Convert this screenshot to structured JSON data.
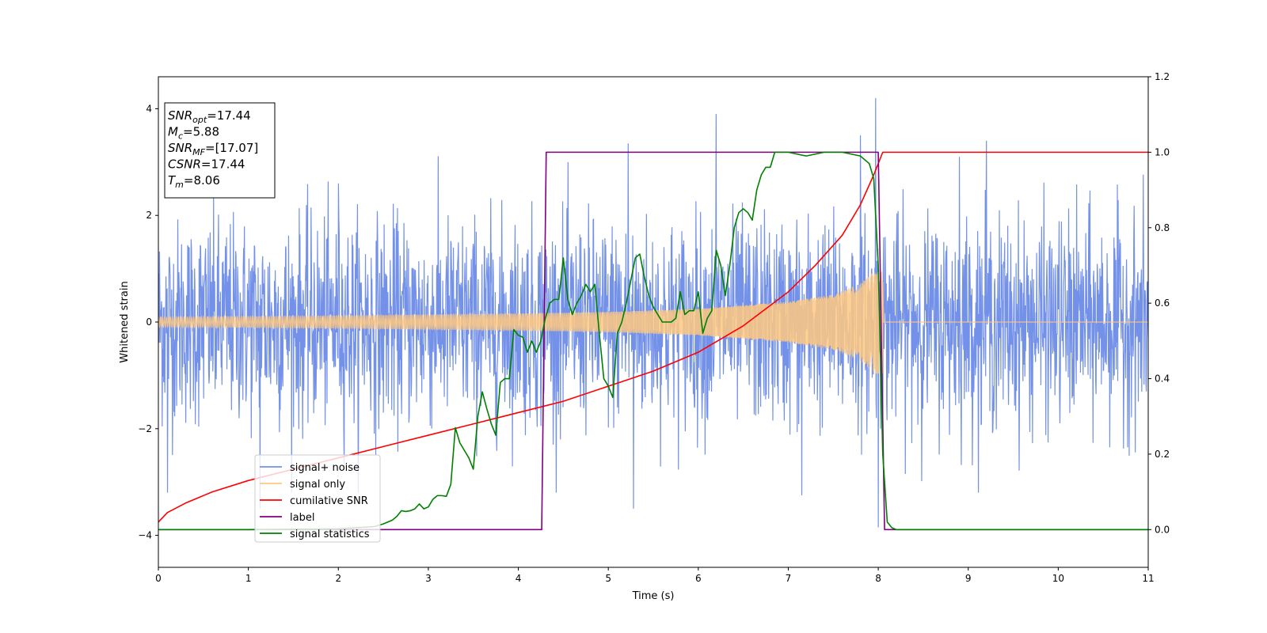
{
  "chart_data": {
    "type": "line",
    "xlabel": "Time (s)",
    "ylabel": "Whitened strain",
    "xlim": [
      0,
      11
    ],
    "ylim_left": [
      -4.6,
      4.6
    ],
    "ylim_right": [
      -0.1,
      1.2
    ],
    "x_ticks": [
      0,
      1,
      2,
      3,
      4,
      5,
      6,
      7,
      8,
      9,
      10,
      11
    ],
    "y_ticks_left": [
      -4,
      -2,
      0,
      2,
      4
    ],
    "y_ticks_right": [
      0.0,
      0.2,
      0.4,
      0.6,
      0.8,
      1.0,
      1.2
    ],
    "grid": false,
    "legend_position": "lower-left",
    "info_box": [
      {
        "sym": "SNR",
        "sub": "opt",
        "value": "=17.44"
      },
      {
        "sym": "M",
        "sub": "c",
        "value": "=5.88"
      },
      {
        "sym": "SNR",
        "sub": "MF",
        "value": "=[17.07]"
      },
      {
        "sym": "CSNR",
        "sub": "",
        "value": "=17.44"
      },
      {
        "sym": "T",
        "sub": "m",
        "value": "=8.06"
      }
    ],
    "series": [
      {
        "name": "signal+ noise",
        "color": "#7391e8",
        "axis": "left",
        "kind": "noise",
        "description_levels": {
          "typical_amplitude": 1.0,
          "max_peak": 4.2,
          "min_peak": -3.9
        },
        "peaks": [
          [
            1.13,
            -3.5
          ],
          [
            5.22,
            3.35
          ],
          [
            5.28,
            -3.5
          ],
          [
            6.2,
            3.9
          ],
          [
            7.15,
            -3.25
          ],
          [
            7.8,
            3.5
          ],
          [
            7.97,
            4.2
          ],
          [
            8.0,
            -3.85
          ],
          [
            9.2,
            3.4
          ],
          [
            0.1,
            -3.2
          ],
          [
            2.0,
            2.6
          ],
          [
            8.9,
            3.1
          ]
        ]
      },
      {
        "name": "signal only",
        "color": "#ffc880",
        "axis": "left",
        "kind": "chirp",
        "envelope": [
          [
            0,
            0.09
          ],
          [
            2,
            0.12
          ],
          [
            4,
            0.16
          ],
          [
            5,
            0.19
          ],
          [
            6,
            0.25
          ],
          [
            7,
            0.38
          ],
          [
            7.5,
            0.52
          ],
          [
            7.8,
            0.72
          ],
          [
            7.95,
            0.95
          ],
          [
            8.05,
            1.05
          ]
        ],
        "tail_after_merger": 0.0
      },
      {
        "name": "cumilative SNR",
        "color": "#ff0000",
        "axis": "right",
        "x": [
          0,
          0.1,
          0.3,
          0.6,
          1,
          1.5,
          2,
          2.5,
          3,
          3.5,
          4,
          4.5,
          5,
          5.5,
          6,
          6.5,
          7,
          7.3,
          7.6,
          7.8,
          7.95,
          8.05,
          8.1,
          11
        ],
        "y": [
          0.02,
          0.045,
          0.07,
          0.1,
          0.13,
          0.16,
          0.19,
          0.22,
          0.25,
          0.28,
          0.31,
          0.34,
          0.38,
          0.42,
          0.47,
          0.54,
          0.63,
          0.7,
          0.78,
          0.86,
          0.94,
          1.0,
          1.0,
          1.0
        ]
      },
      {
        "name": "label",
        "color": "#800080",
        "axis": "right",
        "x": [
          0,
          4.26,
          4.31,
          8.0,
          8.07,
          11
        ],
        "y": [
          0,
          0,
          1,
          1,
          0,
          0
        ]
      },
      {
        "name": "signal statistics",
        "color": "#008000",
        "axis": "right",
        "x": [
          0,
          1,
          2,
          2.4,
          2.5,
          2.6,
          2.65,
          2.7,
          2.75,
          2.8,
          2.85,
          2.9,
          2.95,
          3.0,
          3.05,
          3.1,
          3.15,
          3.2,
          3.25,
          3.3,
          3.35,
          3.4,
          3.45,
          3.5,
          3.55,
          3.6,
          3.65,
          3.7,
          3.75,
          3.8,
          3.85,
          3.9,
          3.95,
          4.0,
          4.05,
          4.1,
          4.15,
          4.2,
          4.25,
          4.3,
          4.35,
          4.4,
          4.45,
          4.5,
          4.55,
          4.6,
          4.65,
          4.7,
          4.75,
          4.8,
          4.85,
          4.9,
          4.95,
          5.0,
          5.05,
          5.1,
          5.15,
          5.2,
          5.25,
          5.3,
          5.35,
          5.4,
          5.45,
          5.5,
          5.6,
          5.7,
          5.75,
          5.8,
          5.85,
          5.9,
          5.95,
          6.0,
          6.05,
          6.1,
          6.15,
          6.2,
          6.25,
          6.3,
          6.35,
          6.4,
          6.45,
          6.5,
          6.55,
          6.6,
          6.65,
          6.7,
          6.75,
          6.8,
          6.85,
          6.9,
          7.0,
          7.2,
          7.4,
          7.6,
          7.8,
          7.9,
          7.95,
          8.0,
          8.05,
          8.1,
          8.15,
          8.2,
          8.3,
          9,
          11
        ],
        "y": [
          0,
          0.0,
          0.002,
          0.008,
          0.015,
          0.025,
          0.035,
          0.05,
          0.048,
          0.05,
          0.055,
          0.068,
          0.055,
          0.06,
          0.08,
          0.09,
          0.09,
          0.088,
          0.12,
          0.27,
          0.23,
          0.21,
          0.19,
          0.16,
          0.3,
          0.365,
          0.32,
          0.28,
          0.25,
          0.39,
          0.4,
          0.4,
          0.53,
          0.515,
          0.51,
          0.47,
          0.5,
          0.47,
          0.5,
          0.56,
          0.6,
          0.61,
          0.61,
          0.72,
          0.61,
          0.57,
          0.6,
          0.62,
          0.65,
          0.63,
          0.65,
          0.52,
          0.4,
          0.38,
          0.35,
          0.52,
          0.55,
          0.6,
          0.66,
          0.72,
          0.73,
          0.67,
          0.62,
          0.59,
          0.55,
          0.55,
          0.56,
          0.63,
          0.57,
          0.58,
          0.58,
          0.63,
          0.52,
          0.56,
          0.58,
          0.74,
          0.7,
          0.62,
          0.7,
          0.8,
          0.84,
          0.85,
          0.84,
          0.82,
          0.9,
          0.94,
          0.96,
          0.96,
          1.0,
          1.0,
          1.0,
          0.99,
          1.0,
          1.0,
          0.99,
          0.97,
          0.93,
          0.7,
          0.2,
          0.02,
          0.005,
          0.0,
          0.0,
          0.0,
          0.0
        ]
      }
    ]
  }
}
